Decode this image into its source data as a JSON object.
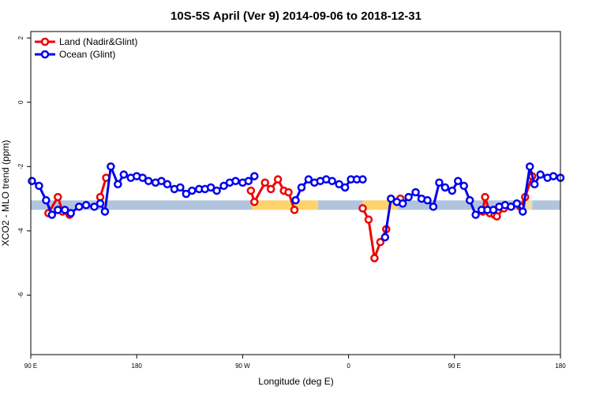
{
  "chart_data": {
    "type": "line",
    "title": "10S-5S April (Ver 9)   2014-09-06 to 2018-12-31",
    "xlabel": "Longitude (deg E)",
    "ylabel": "XCO2 - MLO trend (ppm)",
    "xticks": [
      {
        "value": 90,
        "label": "90 E"
      },
      {
        "value": 180,
        "label": "180"
      },
      {
        "value": 270,
        "label": "90 W"
      },
      {
        "value": 360,
        "label": "0"
      },
      {
        "value": 450,
        "label": "90 E"
      },
      {
        "value": 540,
        "label": "180"
      }
    ],
    "yticks": [
      2,
      0,
      -2,
      -4,
      -6
    ],
    "xlim": [
      90,
      540
    ],
    "ylim": [
      -7.85,
      2.2
    ],
    "grid": false,
    "legend_position": "top-left",
    "surface_band": {
      "y": -3.2,
      "segments": [
        {
          "x": [
            90,
            150
          ],
          "color": "#b0c4de"
        },
        {
          "x": [
            150,
            155
          ],
          "color": "#f0e0a0"
        },
        {
          "x": [
            155,
            278
          ],
          "color": "#b0c4de"
        },
        {
          "x": [
            278,
            334
          ],
          "color": "#ffd36b"
        },
        {
          "x": [
            334,
            372
          ],
          "color": "#b0c4de"
        },
        {
          "x": [
            372,
            402
          ],
          "color": "#ffd36b"
        },
        {
          "x": [
            402,
            511
          ],
          "color": "#b0c4de"
        },
        {
          "x": [
            511,
            516
          ],
          "color": "#f0e0a0"
        },
        {
          "x": [
            516,
            540
          ],
          "color": "#b0c4de"
        }
      ]
    },
    "series": [
      {
        "name": "Land (Nadir&Glint)",
        "color": "#ee0000",
        "x": [
          105,
          113,
          117,
          123,
          149,
          154,
          277,
          280,
          289,
          294,
          300,
          305,
          309,
          314,
          372,
          377,
          382,
          387,
          392,
          404,
          474,
          476,
          480,
          484,
          486,
          492,
          506,
          510,
          516
        ],
        "y": [
          -3.45,
          -2.95,
          -3.4,
          -3.5,
          -2.95,
          -2.35,
          -2.75,
          -3.1,
          -2.5,
          -2.7,
          -2.4,
          -2.75,
          -2.8,
          -3.35,
          -3.3,
          -3.65,
          -4.85,
          -4.35,
          -3.95,
          -3.0,
          -3.4,
          -2.95,
          -3.45,
          -3.5,
          -3.55,
          -3.3,
          -3.25,
          -2.95,
          -2.3
        ]
      },
      {
        "name": "Ocean (Glint)",
        "color": "#0000ee",
        "x": [
          91,
          97,
          103,
          108,
          113,
          119,
          124,
          131,
          137,
          144,
          149,
          153,
          158,
          164,
          169,
          175,
          180,
          185,
          190,
          196,
          201,
          206,
          212,
          217,
          222,
          227,
          233,
          238,
          243,
          248,
          254,
          259,
          264,
          270,
          275,
          280,
          315,
          320,
          326,
          331,
          336,
          341,
          346,
          352,
          357,
          362,
          367,
          372,
          391,
          396,
          401,
          406,
          411,
          417,
          422,
          427,
          432,
          437,
          442,
          448,
          453,
          458,
          463,
          468,
          473,
          478,
          483,
          488,
          493,
          498,
          503,
          508,
          514,
          518,
          523,
          529,
          534,
          540
        ],
        "y": [
          -2.45,
          -2.6,
          -3.05,
          -3.5,
          -3.35,
          -3.35,
          -3.45,
          -3.25,
          -3.2,
          -3.25,
          -3.15,
          -3.4,
          -2.0,
          -2.55,
          -2.25,
          -2.35,
          -2.3,
          -2.35,
          -2.45,
          -2.5,
          -2.45,
          -2.55,
          -2.7,
          -2.65,
          -2.85,
          -2.75,
          -2.7,
          -2.7,
          -2.65,
          -2.75,
          -2.6,
          -2.5,
          -2.45,
          -2.5,
          -2.45,
          -2.3,
          -3.05,
          -2.65,
          -2.4,
          -2.5,
          -2.45,
          -2.4,
          -2.45,
          -2.55,
          -2.65,
          -2.4,
          -2.4,
          -2.4,
          -4.2,
          -3.0,
          -3.1,
          -3.15,
          -2.95,
          -2.8,
          -3.0,
          -3.05,
          -3.25,
          -2.5,
          -2.65,
          -2.75,
          -2.45,
          -2.6,
          -3.05,
          -3.5,
          -3.35,
          -3.35,
          -3.35,
          -3.25,
          -3.2,
          -3.25,
          -3.15,
          -3.4,
          -2.0,
          -2.55,
          -2.25,
          -2.35,
          -2.3,
          -2.35
        ]
      }
    ]
  }
}
